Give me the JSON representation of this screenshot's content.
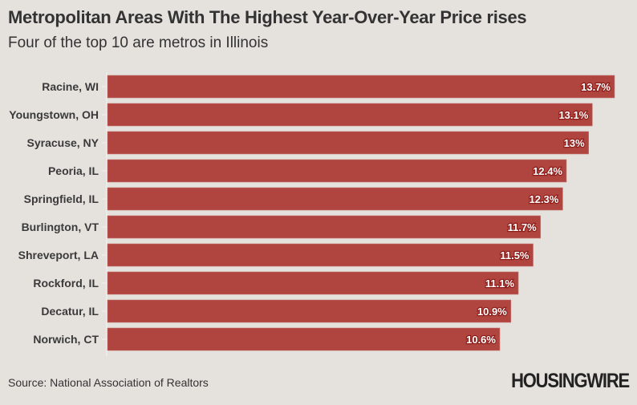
{
  "header": {
    "title": "Metropolitan Areas With The Highest Year-Over-Year Price rises",
    "subtitle": "Four of the top 10 are metros in Illinois"
  },
  "footer": {
    "source": "Source: National Association of Realtors",
    "logo": "HOUSINGWIRE"
  },
  "colors": {
    "bar": "#b04540",
    "background": "#e5e2de",
    "label_text": "#ffffff"
  },
  "chart_data": {
    "type": "bar",
    "orientation": "horizontal",
    "title": "Metropolitan Areas With The Highest Year-Over-Year Price rises",
    "subtitle": "Four of the top 10 are metros in Illinois",
    "xlabel": "",
    "ylabel": "",
    "xlim": [
      0,
      13.7
    ],
    "grid": false,
    "categories": [
      "Racine, WI",
      "Youngstown, OH",
      "Syracuse, NY",
      "Peoria, IL",
      "Springfield, IL",
      "Burlington, VT",
      "Shreveport, LA",
      "Rockford, IL",
      "Decatur, IL",
      "Norwich, CT"
    ],
    "values": [
      13.7,
      13.1,
      13,
      12.4,
      12.3,
      11.7,
      11.5,
      11.1,
      10.9,
      10.6
    ],
    "labels": [
      "13.7%",
      "13.1%",
      "13%",
      "12.4%",
      "12.3%",
      "11.7%",
      "11.5%",
      "11.1%",
      "10.9%",
      "10.6%"
    ]
  }
}
